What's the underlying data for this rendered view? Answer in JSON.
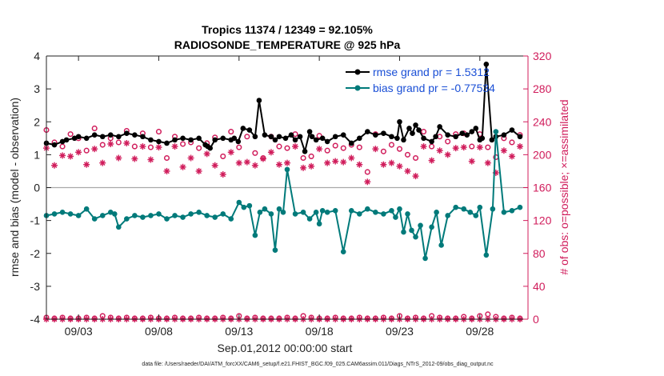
{
  "chart_data": {
    "type": "line",
    "title": "Tropics 11374 / 12349 = 92.105%",
    "subtitle": "RADIOSONDE_TEMPERATURE @ 925 hPa",
    "xlabel": "Sep.01,2012 00:00:00 start",
    "ylabel": "rmse and bias (model - observation)",
    "y2label": "# of obs: o=possible; ×=assimilated",
    "xlim": [
      0,
      30
    ],
    "ylim": [
      -4,
      4
    ],
    "y2lim": [
      0,
      320
    ],
    "xticks": [
      {
        "x": 2,
        "label": "09/03"
      },
      {
        "x": 7,
        "label": "09/08"
      },
      {
        "x": 12,
        "label": "09/13"
      },
      {
        "x": 17,
        "label": "09/18"
      },
      {
        "x": 22,
        "label": "09/23"
      },
      {
        "x": 27,
        "label": "09/28"
      }
    ],
    "yticks": [
      4,
      3,
      2,
      1,
      0,
      -1,
      -2,
      -3,
      -4
    ],
    "y2ticks": [
      320,
      280,
      240,
      200,
      160,
      120,
      80,
      40,
      0
    ],
    "legend": {
      "rmse": "rmse grand pr = 1.5312",
      "bias": "bias grand pr = -0.77534"
    },
    "footnote": "data file: /Users/raeder/DAI/ATM_forcXX/CAM6_setup/f.e21.FHIST_BGC.f09_025.CAM6assim.011/Diags_NTrS_2012-09/obs_diag_output.nc",
    "colors": {
      "rmse": "#000000",
      "bias": "#007a7a",
      "obs": "#d01c5b",
      "zero_line": "#a9a9a9"
    },
    "series": [
      {
        "name": "rmse",
        "x": [
          0.0,
          0.5,
          1.0,
          1.25,
          1.75,
          2.0,
          2.5,
          3.0,
          3.5,
          4.0,
          4.5,
          5.0,
          5.5,
          6.0,
          6.5,
          7.0,
          7.5,
          8.0,
          8.5,
          9.0,
          9.5,
          9.9,
          10.05,
          10.2,
          10.5,
          11.0,
          11.5,
          11.7,
          11.95,
          12.25,
          12.65,
          13.0,
          13.25,
          13.6,
          14.0,
          14.25,
          14.5,
          14.9,
          15.25,
          15.5,
          15.8,
          16.1,
          16.4,
          16.55,
          16.8,
          17.2,
          17.5,
          18.0,
          18.5,
          19.0,
          19.5,
          20.0,
          20.5,
          21.0,
          21.5,
          21.85,
          22.0,
          22.25,
          22.6,
          22.8,
          23.0,
          23.2,
          23.5,
          24.0,
          24.25,
          24.5,
          25.0,
          25.5,
          25.9,
          26.2,
          26.5,
          26.75,
          27.0,
          27.15,
          27.4,
          27.75,
          28.0,
          28.5,
          29.0,
          29.5
        ],
        "values": [
          1.35,
          1.3,
          1.4,
          1.45,
          1.5,
          1.55,
          1.5,
          1.6,
          1.55,
          1.6,
          1.55,
          1.65,
          1.6,
          1.55,
          1.45,
          1.4,
          1.35,
          1.45,
          1.5,
          1.45,
          1.5,
          1.3,
          1.25,
          1.2,
          1.45,
          1.5,
          1.45,
          1.5,
          1.4,
          1.8,
          1.75,
          1.55,
          2.65,
          1.6,
          1.55,
          1.45,
          1.55,
          1.5,
          1.6,
          1.45,
          1.55,
          1.1,
          1.7,
          1.55,
          1.45,
          1.5,
          1.4,
          1.55,
          1.6,
          1.35,
          1.5,
          1.7,
          1.6,
          1.65,
          1.55,
          1.5,
          2.0,
          1.45,
          1.8,
          1.65,
          1.9,
          1.75,
          1.5,
          1.4,
          1.55,
          1.85,
          1.6,
          1.55,
          1.65,
          1.6,
          1.7,
          1.8,
          1.45,
          1.5,
          3.75,
          1.45,
          1.55,
          1.6,
          1.75,
          1.55
        ]
      },
      {
        "name": "bias",
        "x": [
          0.0,
          0.5,
          1.0,
          1.5,
          2.0,
          2.5,
          3.0,
          3.5,
          4.0,
          4.25,
          4.5,
          5.0,
          5.5,
          6.0,
          6.5,
          7.0,
          7.5,
          8.0,
          8.5,
          9.0,
          9.5,
          10.0,
          10.5,
          11.0,
          11.5,
          12.0,
          12.3,
          12.65,
          13.0,
          13.3,
          13.6,
          14.0,
          14.25,
          14.5,
          14.75,
          15.0,
          15.5,
          16.0,
          16.4,
          16.8,
          17.0,
          17.2,
          17.5,
          18.0,
          18.5,
          19.0,
          19.5,
          20.0,
          20.5,
          21.0,
          21.5,
          21.75,
          22.0,
          22.25,
          22.5,
          22.75,
          23.0,
          23.3,
          23.6,
          24.0,
          24.3,
          24.6,
          25.0,
          25.5,
          26.0,
          26.4,
          26.75,
          27.0,
          27.4,
          27.8,
          28.0,
          28.5,
          29.0,
          29.5
        ],
        "values": [
          -0.85,
          -0.8,
          -0.75,
          -0.8,
          -0.85,
          -0.65,
          -0.95,
          -0.85,
          -0.75,
          -0.8,
          -1.2,
          -0.95,
          -0.85,
          -0.9,
          -0.85,
          -0.8,
          -0.95,
          -0.85,
          -0.9,
          -0.8,
          -0.75,
          -0.85,
          -0.9,
          -0.8,
          -0.95,
          -0.45,
          -0.6,
          -0.55,
          -1.45,
          -0.75,
          -0.65,
          -0.8,
          -1.9,
          -0.65,
          -0.75,
          0.55,
          -0.8,
          -0.75,
          -0.95,
          -0.75,
          -1.1,
          -0.7,
          -0.75,
          -0.7,
          -1.95,
          -0.7,
          -0.8,
          -0.65,
          -0.75,
          -0.8,
          -0.7,
          -0.9,
          -0.65,
          -1.35,
          -0.8,
          -1.3,
          -1.5,
          -1.15,
          -2.15,
          -1.2,
          -0.75,
          -1.75,
          -0.85,
          -0.6,
          -0.65,
          -0.75,
          -0.85,
          -0.6,
          -2.05,
          -0.65,
          1.7,
          -0.75,
          -0.7,
          -0.6
        ]
      },
      {
        "name": "possible_obs",
        "x": [
          0.0,
          0.5,
          1.0,
          1.5,
          2.0,
          2.5,
          3.0,
          3.5,
          4.0,
          4.5,
          5.0,
          5.5,
          6.0,
          6.5,
          7.0,
          7.5,
          8.0,
          8.5,
          9.0,
          9.5,
          10.0,
          10.5,
          11.0,
          11.5,
          12.0,
          12.5,
          13.0,
          13.5,
          14.0,
          14.5,
          15.0,
          15.5,
          16.0,
          16.5,
          17.0,
          17.5,
          18.0,
          18.5,
          19.0,
          19.5,
          20.0,
          20.5,
          21.0,
          21.5,
          22.0,
          22.5,
          23.0,
          23.5,
          24.0,
          24.5,
          25.0,
          25.5,
          26.0,
          26.5,
          27.0,
          27.5,
          28.0,
          28.5,
          29.0,
          29.5
        ],
        "values": [
          230,
          215,
          210,
          225,
          220,
          205,
          232,
          212,
          220,
          215,
          229,
          210,
          226,
          209,
          228,
          196,
          222,
          213,
          215,
          208,
          214,
          221,
          198,
          228,
          209,
          222,
          202,
          196,
          222,
          210,
          208,
          225,
          196,
          198,
          223,
          205,
          211,
          208,
          212,
          209,
          179,
          225,
          204,
          212,
          207,
          200,
          196,
          228,
          210,
          222,
          216,
          225,
          226,
          210,
          225,
          209,
          197,
          220,
          215,
          224
        ]
      },
      {
        "name": "assimilated_obs",
        "x": [
          0.0,
          0.5,
          1.0,
          1.5,
          2.0,
          2.5,
          3.0,
          3.5,
          4.0,
          4.5,
          5.0,
          5.5,
          6.0,
          6.5,
          7.0,
          7.5,
          8.0,
          8.5,
          9.0,
          9.5,
          10.0,
          10.5,
          11.0,
          11.5,
          12.0,
          12.5,
          13.0,
          13.5,
          14.0,
          14.5,
          15.0,
          15.5,
          16.0,
          16.5,
          17.0,
          17.5,
          18.0,
          18.5,
          19.0,
          19.5,
          20.0,
          20.5,
          21.0,
          21.5,
          22.0,
          22.5,
          23.0,
          23.5,
          24.0,
          24.5,
          25.0,
          25.5,
          26.0,
          26.5,
          27.0,
          27.5,
          28.0,
          28.5,
          29.0,
          29.5
        ],
        "values": [
          208,
          187,
          199,
          198,
          203,
          188,
          207,
          190,
          213,
          196,
          214,
          195,
          210,
          194,
          209,
          180,
          210,
          185,
          196,
          180,
          201,
          187,
          176,
          203,
          190,
          191,
          187,
          195,
          203,
          188,
          190,
          210,
          184,
          186,
          207,
          190,
          192,
          191,
          196,
          188,
          167,
          207,
          188,
          190,
          186,
          180,
          174,
          210,
          193,
          205,
          200,
          208,
          209,
          192,
          209,
          190,
          178,
          205,
          198,
          210
        ]
      },
      {
        "name": "possible_obs_bottom",
        "x": [
          0.0,
          0.5,
          1.0,
          1.5,
          2.0,
          2.5,
          3.0,
          3.5,
          4.0,
          4.5,
          5.0,
          5.5,
          6.0,
          6.5,
          7.0,
          7.5,
          8.0,
          8.5,
          9.0,
          9.5,
          10.0,
          10.5,
          11.0,
          11.5,
          12.0,
          12.5,
          13.0,
          13.5,
          14.0,
          14.5,
          15.0,
          15.5,
          16.0,
          16.5,
          17.0,
          17.5,
          18.0,
          18.5,
          19.0,
          19.5,
          20.0,
          20.5,
          21.0,
          21.5,
          22.0,
          22.5,
          23.0,
          23.5,
          24.0,
          24.5,
          25.0,
          25.5,
          26.0,
          26.5,
          27.0,
          27.5,
          28.0,
          28.5,
          29.0,
          29.5
        ],
        "values": [
          2,
          1,
          2,
          1,
          1,
          2,
          1,
          4,
          2,
          1,
          2,
          1,
          1,
          2,
          1,
          1,
          2,
          1,
          1,
          2,
          1,
          1,
          2,
          1,
          4,
          1,
          2,
          1,
          1,
          1,
          2,
          1,
          4,
          2,
          1,
          1,
          2,
          1,
          1,
          2,
          1,
          1,
          2,
          1,
          4,
          1,
          2,
          1,
          4,
          2,
          1,
          1,
          3,
          1,
          4,
          6,
          3,
          1,
          2,
          1
        ]
      },
      {
        "name": "assimilated_obs_bottom",
        "x": [
          0.0,
          0.5,
          1.0,
          1.5,
          2.0,
          2.5,
          3.0,
          3.5,
          4.0,
          4.5,
          5.0,
          5.5,
          6.0,
          6.5,
          7.0,
          7.5,
          8.0,
          8.5,
          9.0,
          9.5,
          10.0,
          10.5,
          11.0,
          11.5,
          12.0,
          12.5,
          13.0,
          13.5,
          14.0,
          14.5,
          15.0,
          15.5,
          16.0,
          16.5,
          17.0,
          17.5,
          18.0,
          18.5,
          19.0,
          19.5,
          20.0,
          20.5,
          21.0,
          21.5,
          22.0,
          22.5,
          23.0,
          23.5,
          24.0,
          24.5,
          25.0,
          25.5,
          26.0,
          26.5,
          27.0,
          27.5,
          28.0,
          28.5,
          29.0,
          29.5
        ],
        "values": [
          0,
          0,
          0,
          0,
          0,
          0,
          0,
          0,
          0,
          0,
          0,
          0,
          0,
          0,
          0,
          0,
          0,
          0,
          0,
          0,
          0,
          0,
          0,
          0,
          0,
          0,
          0,
          0,
          0,
          0,
          0,
          0,
          0,
          0,
          0,
          0,
          0,
          0,
          0,
          0,
          0,
          0,
          0,
          0,
          0,
          0,
          0,
          0,
          0,
          0,
          0,
          0,
          0,
          0,
          0,
          0,
          0,
          0,
          0,
          0
        ]
      }
    ]
  }
}
